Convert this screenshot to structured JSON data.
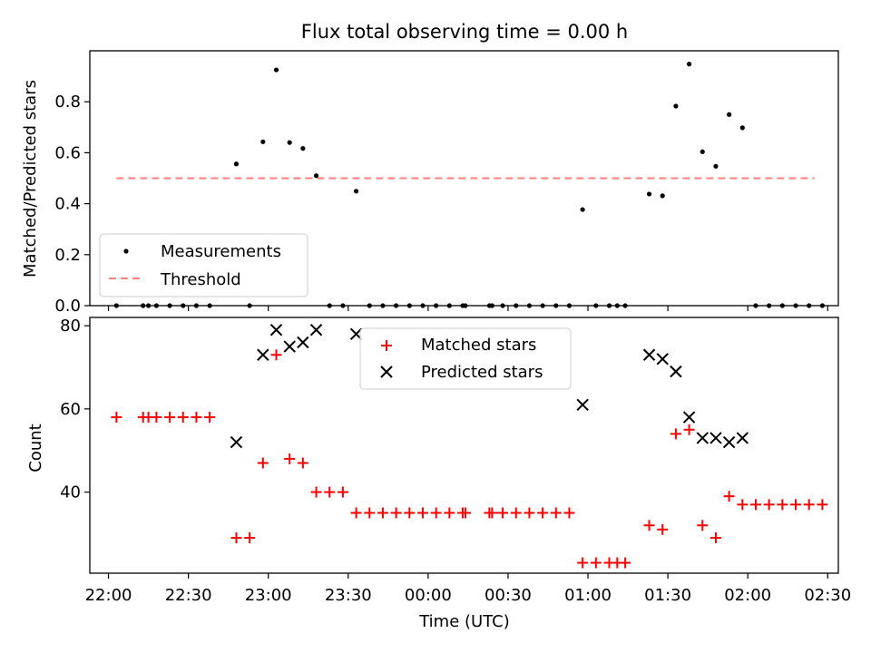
{
  "chart_data": [
    {
      "type": "scatter",
      "title": "Flux total observing time = 0.00 h",
      "ylabel": "Matched/Predicted stars",
      "xlabel": "",
      "ylim": [
        0,
        1.0
      ],
      "yticks": [
        0.0,
        0.2,
        0.4,
        0.6,
        0.8
      ],
      "ytick_labels": [
        "0.0",
        "0.2",
        "0.4",
        "0.6",
        "0.8"
      ],
      "legend_position": "lower-left",
      "threshold": {
        "name": "Threshold",
        "value": 0.5,
        "x_start": "22:03",
        "x_end": "02:25",
        "color": "#ff7f7f"
      },
      "series": [
        {
          "name": "Measurements",
          "marker": "dot",
          "color": "#000000",
          "points": [
            [
              "22:03",
              0
            ],
            [
              "22:13",
              0
            ],
            [
              "22:15",
              0
            ],
            [
              "22:18",
              0
            ],
            [
              "22:23",
              0
            ],
            [
              "22:28",
              0
            ],
            [
              "22:33",
              0
            ],
            [
              "22:38",
              0
            ],
            [
              "22:48",
              0.556
            ],
            [
              "22:53",
              0
            ],
            [
              "22:58",
              0.643
            ],
            [
              "23:03",
              0.925
            ],
            [
              "23:08",
              0.64
            ],
            [
              "23:13",
              0.617
            ],
            [
              "23:18",
              0.51
            ],
            [
              "23:23",
              0
            ],
            [
              "23:28",
              0
            ],
            [
              "23:33",
              0.449
            ],
            [
              "23:38",
              0
            ],
            [
              "23:43",
              0
            ],
            [
              "23:48",
              0
            ],
            [
              "23:53",
              0
            ],
            [
              "23:58",
              0
            ],
            [
              "00:03",
              0
            ],
            [
              "00:08",
              0
            ],
            [
              "00:13",
              0
            ],
            [
              "00:14",
              0
            ],
            [
              "00:23",
              0
            ],
            [
              "00:24",
              0
            ],
            [
              "00:28",
              0
            ],
            [
              "00:33",
              0
            ],
            [
              "00:38",
              0
            ],
            [
              "00:43",
              0
            ],
            [
              "00:48",
              0
            ],
            [
              "00:53",
              0
            ],
            [
              "00:58",
              0.377
            ],
            [
              "01:03",
              0
            ],
            [
              "01:08",
              0
            ],
            [
              "01:11",
              0
            ],
            [
              "01:14",
              0
            ],
            [
              "01:23",
              0.438
            ],
            [
              "01:28",
              0.431
            ],
            [
              "01:33",
              0.783
            ],
            [
              "01:38",
              0.948
            ],
            [
              "01:43",
              0.604
            ],
            [
              "01:48",
              0.547
            ],
            [
              "01:53",
              0.75
            ],
            [
              "01:58",
              0.698
            ],
            [
              "02:03",
              0
            ],
            [
              "02:08",
              0
            ],
            [
              "02:13",
              0
            ],
            [
              "02:18",
              0
            ],
            [
              "02:23",
              0
            ],
            [
              "02:28",
              0
            ]
          ]
        }
      ]
    },
    {
      "type": "scatter",
      "title": "",
      "xlabel": "Time (UTC)",
      "ylabel": "Count",
      "ylim": [
        20.5,
        82
      ],
      "yticks": [
        40,
        60,
        80
      ],
      "ytick_labels": [
        "40",
        "60",
        "80"
      ],
      "xlim": [
        "21:53",
        "02:34"
      ],
      "xticks": [
        "22:00",
        "22:30",
        "23:00",
        "23:30",
        "00:00",
        "00:30",
        "01:00",
        "01:30",
        "02:00",
        "02:30"
      ],
      "xtick_labels": [
        "22:00",
        "22:30",
        "23:00",
        "23:30",
        "00:00",
        "00:30",
        "01:00",
        "01:30",
        "02:00",
        "02:30"
      ],
      "legend_position": "upper-center",
      "series": [
        {
          "name": "Matched stars",
          "marker": "plus",
          "color": "#ff0000",
          "points": [
            [
              "22:03",
              58
            ],
            [
              "22:13",
              58
            ],
            [
              "22:15",
              58
            ],
            [
              "22:18",
              58
            ],
            [
              "22:23",
              58
            ],
            [
              "22:28",
              58
            ],
            [
              "22:33",
              58
            ],
            [
              "22:38",
              58
            ],
            [
              "22:48",
              29
            ],
            [
              "22:53",
              29
            ],
            [
              "22:58",
              47
            ],
            [
              "23:03",
              73
            ],
            [
              "23:08",
              48
            ],
            [
              "23:13",
              47
            ],
            [
              "23:18",
              40
            ],
            [
              "23:23",
              40
            ],
            [
              "23:28",
              40
            ],
            [
              "23:33",
              35
            ],
            [
              "23:38",
              35
            ],
            [
              "23:43",
              35
            ],
            [
              "23:48",
              35
            ],
            [
              "23:53",
              35
            ],
            [
              "23:58",
              35
            ],
            [
              "00:03",
              35
            ],
            [
              "00:08",
              35
            ],
            [
              "00:13",
              35
            ],
            [
              "00:14",
              35
            ],
            [
              "00:23",
              35
            ],
            [
              "00:24",
              35
            ],
            [
              "00:28",
              35
            ],
            [
              "00:33",
              35
            ],
            [
              "00:38",
              35
            ],
            [
              "00:43",
              35
            ],
            [
              "00:48",
              35
            ],
            [
              "00:53",
              35
            ],
            [
              "00:58",
              23
            ],
            [
              "01:03",
              23
            ],
            [
              "01:08",
              23
            ],
            [
              "01:11",
              23
            ],
            [
              "01:14",
              23
            ],
            [
              "01:23",
              32
            ],
            [
              "01:28",
              31
            ],
            [
              "01:33",
              54
            ],
            [
              "01:38",
              55
            ],
            [
              "01:43",
              32
            ],
            [
              "01:48",
              29
            ],
            [
              "01:53",
              39
            ],
            [
              "01:58",
              37
            ],
            [
              "02:03",
              37
            ],
            [
              "02:08",
              37
            ],
            [
              "02:13",
              37
            ],
            [
              "02:18",
              37
            ],
            [
              "02:23",
              37
            ],
            [
              "02:28",
              37
            ]
          ]
        },
        {
          "name": "Predicted stars",
          "marker": "x",
          "color": "#000000",
          "points": [
            [
              "22:48",
              52
            ],
            [
              "22:58",
              73
            ],
            [
              "23:03",
              79
            ],
            [
              "23:08",
              75
            ],
            [
              "23:13",
              76
            ],
            [
              "23:18",
              79
            ],
            [
              "23:33",
              78
            ],
            [
              "00:58",
              61
            ],
            [
              "01:23",
              73
            ],
            [
              "01:28",
              72
            ],
            [
              "01:33",
              69
            ],
            [
              "01:38",
              58
            ],
            [
              "01:43",
              53
            ],
            [
              "01:48",
              53
            ],
            [
              "01:53",
              52
            ],
            [
              "01:58",
              53
            ]
          ]
        }
      ]
    }
  ]
}
